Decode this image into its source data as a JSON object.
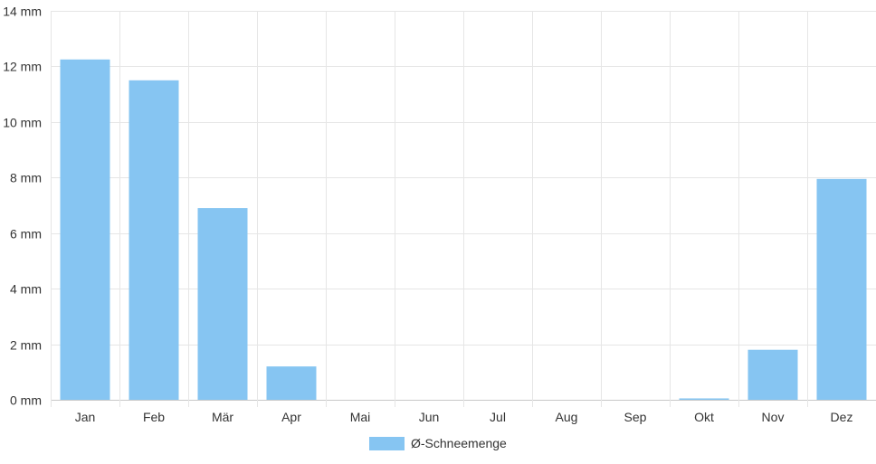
{
  "chart_data": {
    "type": "bar",
    "categories": [
      "Jan",
      "Feb",
      "Mär",
      "Apr",
      "Mai",
      "Jun",
      "Jul",
      "Aug",
      "Sep",
      "Okt",
      "Nov",
      "Dez"
    ],
    "series": [
      {
        "name": "Ø-Schneemenge",
        "values": [
          12.25,
          11.5,
          6.9,
          1.2,
          0,
          0,
          0,
          0,
          0,
          0.05,
          1.8,
          7.95
        ],
        "color": "#86c5f2"
      }
    ],
    "yticks": [
      "0 mm",
      "2 mm",
      "4 mm",
      "6 mm",
      "8 mm",
      "10 mm",
      "12 mm",
      "14 mm"
    ],
    "ylim": [
      0,
      14
    ],
    "grid": true,
    "legend": "bottom"
  }
}
